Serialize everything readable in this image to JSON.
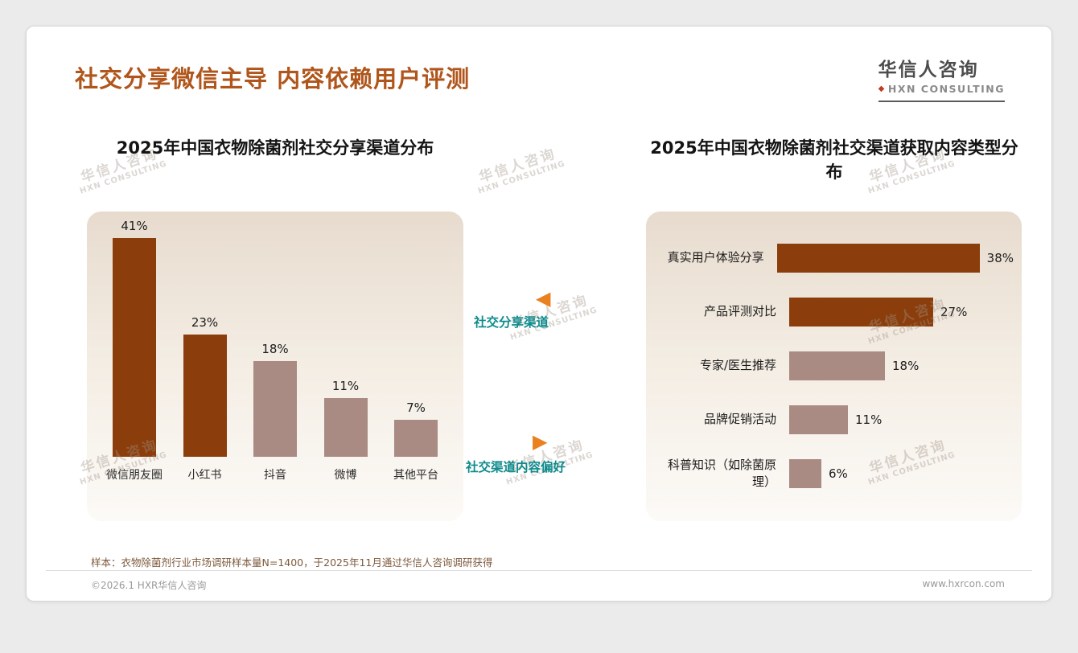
{
  "page": {
    "title": "社交分享微信主导 内容依赖用户评测",
    "logo": {
      "cn": "华信人咨询",
      "en": "HXN CONSULTING"
    },
    "watermark": {
      "cn": "华信人咨询",
      "en": "HXN CONSULTING"
    },
    "annotations": {
      "left_label": "社交分享渠道",
      "right_label": "社交渠道内容偏好"
    },
    "sample_note": "样本：衣物除菌剂行业市场调研样本量N=1400，于2025年11月通过华信人咨询调研获得",
    "footer": {
      "left": "©2026.1 HXR华信人咨询",
      "right": "www.hxrcon.com"
    }
  },
  "colors": {
    "title": "#B0551B",
    "bar_dark": "#8B3E0C",
    "bar_light": "#A98B83",
    "teal_label": "#0F8B8D",
    "orange_arrow": "#E9811F"
  },
  "chart_data": [
    {
      "type": "bar",
      "title": "2025年中国衣物除菌剂社交分享渠道分布",
      "categories": [
        "微信朋友圈",
        "小红书",
        "抖音",
        "微博",
        "其他平台"
      ],
      "values": [
        41,
        23,
        18,
        11,
        7
      ],
      "unit": "%",
      "ylim": [
        0,
        45
      ],
      "highlight_count": 2,
      "legend": "none",
      "grid": false
    },
    {
      "type": "bar-horizontal",
      "title": "2025年中国衣物除菌剂社交渠道获取内容类型分布",
      "categories": [
        "真实用户体验分享",
        "产品评测对比",
        "专家/医生推荐",
        "品牌促销活动",
        "科普知识（如除菌原理）"
      ],
      "values": [
        38,
        27,
        18,
        11,
        6
      ],
      "unit": "%",
      "xlim": [
        0,
        42
      ],
      "highlight_count": 2,
      "legend": "none",
      "grid": false
    }
  ]
}
